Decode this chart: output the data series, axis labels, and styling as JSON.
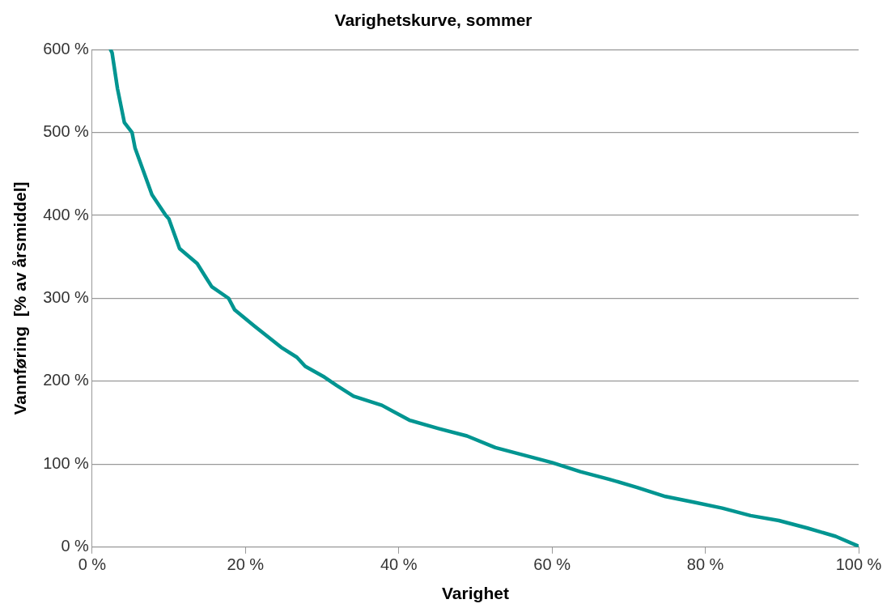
{
  "chart_data": {
    "type": "line",
    "title": "Varighetskurve, sommer",
    "xlabel": "Varighet",
    "ylabel": "Vannføring  [% av årsmiddel]",
    "x": [
      2.4,
      2.6,
      3.3,
      4.2,
      5.2,
      5.6,
      6.7,
      7.8,
      9.6,
      10,
      11.4,
      13.7,
      15.6,
      17.8,
      18.6,
      21.1,
      24.8,
      26.7,
      27.8,
      30.3,
      31.9,
      34.1,
      37.8,
      41.4,
      45.2,
      48.9,
      52.6,
      56.3,
      60,
      63.7,
      67.4,
      71.1,
      74.8,
      78.6,
      82.2,
      85.9,
      89.6,
      93.3,
      97,
      100
    ],
    "series": [
      {
        "color": "#009591",
        "values": [
          600,
          596,
          553,
          512,
          500,
          481,
          453,
          425,
          400,
          396,
          360,
          342,
          314,
          300,
          286,
          267,
          240,
          229,
          218,
          205,
          195,
          182,
          171,
          153,
          143,
          134,
          120,
          111,
          102,
          91,
          82,
          72,
          61,
          54,
          47,
          38,
          32,
          23,
          13,
          1
        ]
      }
    ],
    "xlim": [
      0,
      100
    ],
    "xticks": [
      {
        "value": 0,
        "label": "0 %"
      },
      {
        "value": 20,
        "label": "20 %"
      },
      {
        "value": 40,
        "label": "40 %"
      },
      {
        "value": 60,
        "label": "60 %"
      },
      {
        "value": 80,
        "label": "80 %"
      },
      {
        "value": 100,
        "label": "100 %"
      }
    ],
    "ylim": [
      0,
      600
    ],
    "yticks": [
      {
        "value": 0,
        "label": "0 %"
      },
      {
        "value": 100,
        "label": "100 %"
      },
      {
        "value": 200,
        "label": "200 %"
      },
      {
        "value": 300,
        "label": "300 %"
      },
      {
        "value": 400,
        "label": "400 %"
      },
      {
        "value": 500,
        "label": "500 %"
      },
      {
        "value": 600,
        "label": "600 %"
      }
    ],
    "grid": "y",
    "legend": false,
    "marker": "none",
    "line_style": "solid"
  }
}
